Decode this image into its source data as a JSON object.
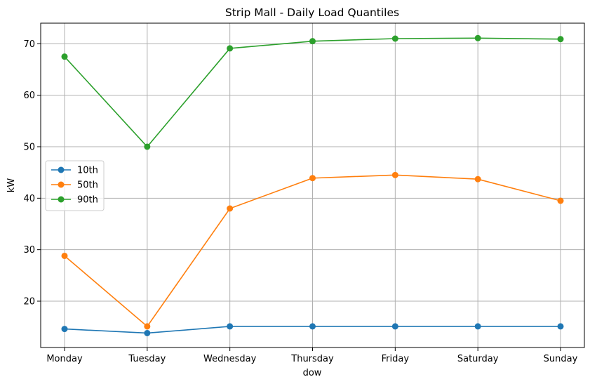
{
  "chart_data": {
    "type": "line",
    "title": "Strip Mall - Daily Load Quantiles",
    "xlabel": "dow",
    "ylabel": "kW",
    "categories": [
      "Monday",
      "Tuesday",
      "Wednesday",
      "Thursday",
      "Friday",
      "Saturday",
      "Sunday"
    ],
    "series": [
      {
        "name": "10th",
        "color": "#1f77b4",
        "values": [
          14.6,
          13.8,
          15.1,
          15.1,
          15.1,
          15.1,
          15.1
        ]
      },
      {
        "name": "50th",
        "color": "#ff7f0e",
        "values": [
          28.8,
          15.1,
          38.0,
          43.9,
          44.5,
          43.7,
          39.5
        ]
      },
      {
        "name": "90th",
        "color": "#2ca02c",
        "values": [
          67.5,
          50.0,
          69.1,
          70.5,
          71.0,
          71.1,
          70.9
        ]
      }
    ],
    "ylim": [
      11.0,
      74.0
    ],
    "yticks": [
      20,
      30,
      40,
      50,
      60,
      70
    ],
    "grid": true,
    "legend_position": "center-left",
    "marker": "circle"
  }
}
